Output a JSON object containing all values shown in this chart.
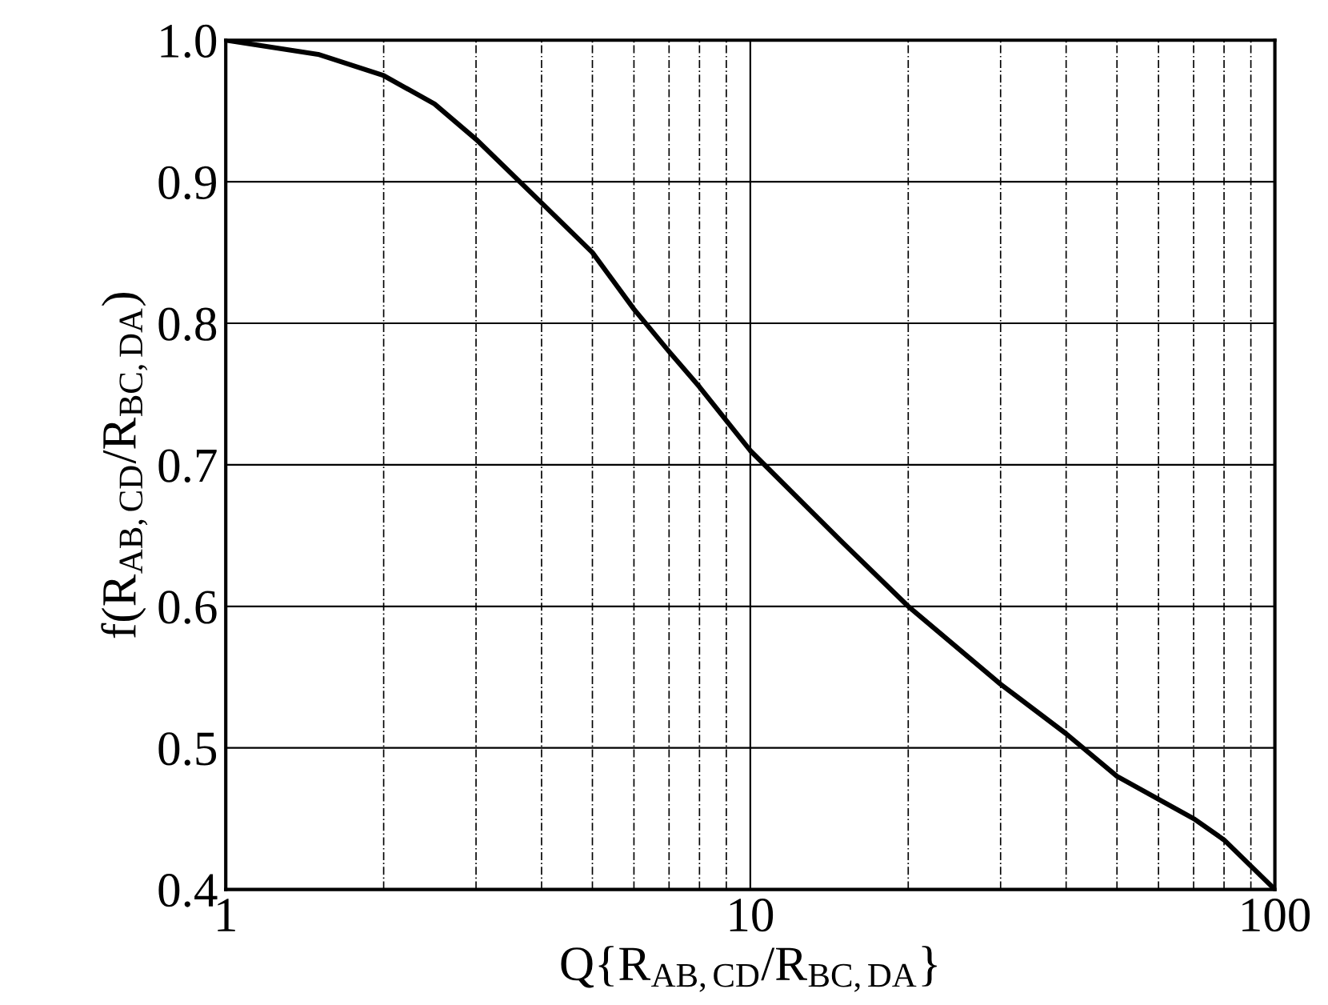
{
  "chart_data": {
    "type": "line",
    "xlabel": "Q{R$_{AB,CD}$/R$_{BC,DA}$}",
    "ylabel": "f(R$_{AB,CD}$/R$_{BC,DA}$)",
    "log": "x",
    "x": [
      1,
      1.5,
      2,
      2.5,
      3,
      4,
      5,
      6,
      7,
      8,
      10,
      15,
      20,
      30,
      40,
      50,
      70,
      80,
      100
    ],
    "series": [
      {
        "color": "#000000",
        "values": [
          1.0,
          0.99,
          0.975,
          0.955,
          0.93,
          0.885,
          0.85,
          0.81,
          0.78,
          0.755,
          0.71,
          0.645,
          0.6,
          0.545,
          0.51,
          0.48,
          0.45,
          0.435,
          0.4
        ]
      }
    ],
    "xlim": [
      1,
      100
    ],
    "xticks": [
      1,
      10,
      100
    ],
    "ylim": [
      0.4,
      1.0
    ],
    "yticks": [
      0.4,
      0.5,
      0.6,
      0.7,
      0.8,
      0.9,
      {
        "value": 1,
        "label": "1.0"
      }
    ],
    "grid": true,
    "marker": "none",
    "line_style": "solid"
  }
}
